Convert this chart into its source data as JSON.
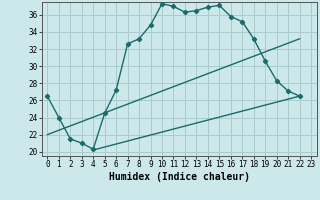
{
  "xlabel": "Humidex (Indice chaleur)",
  "bg_color": "#cce8ea",
  "grid_color": "#aacccc",
  "line_color": "#1a6b6b",
  "xlim": [
    -0.5,
    23.5
  ],
  "ylim": [
    19.5,
    37.5
  ],
  "xticks": [
    0,
    1,
    2,
    3,
    4,
    5,
    6,
    7,
    8,
    9,
    10,
    11,
    12,
    13,
    14,
    15,
    16,
    17,
    18,
    19,
    20,
    21,
    22,
    23
  ],
  "yticks": [
    20,
    22,
    24,
    26,
    28,
    30,
    32,
    34,
    36
  ],
  "curve1_x": [
    0,
    1,
    2,
    3,
    4,
    5,
    6,
    7,
    8,
    9,
    10,
    11,
    12,
    13,
    14,
    15,
    16,
    17,
    18,
    19,
    20,
    21,
    22
  ],
  "curve1_y": [
    26.5,
    24.0,
    21.5,
    21.0,
    20.3,
    24.5,
    27.2,
    32.6,
    33.2,
    34.8,
    37.3,
    37.0,
    36.3,
    36.5,
    36.9,
    37.1,
    35.8,
    35.2,
    33.2,
    30.6,
    28.3,
    27.1,
    26.5
  ],
  "curve2_x": [
    0,
    22
  ],
  "curve2_y": [
    22.0,
    33.2
  ],
  "curve3_x": [
    4,
    22
  ],
  "curve3_y": [
    20.2,
    26.5
  ],
  "xlabel_fontsize": 7,
  "tick_fontsize": 5.5
}
